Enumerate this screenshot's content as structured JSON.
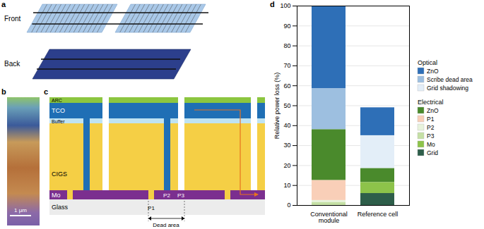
{
  "panels": {
    "a": {
      "panel": "a",
      "texts": [
        "Front",
        "Back"
      ]
    },
    "b": {
      "panel": "b",
      "scale_bar": "1 μm"
    },
    "c": {
      "panel": "c",
      "layers": [
        "ARC",
        "TCO",
        "Buffer",
        "CIGS",
        "Mo",
        "Glass"
      ],
      "scribes": [
        "P1",
        "P2",
        "P3"
      ],
      "dead_area": "Dead area"
    }
  },
  "chart_data": {
    "panel": "d",
    "type": "bar",
    "stacked": true,
    "categories": [
      "Conventional module",
      "Reference cell"
    ],
    "ylabel": "Relative power loss (%)",
    "ylim": [
      0,
      100
    ],
    "yticks": [
      0,
      10,
      20,
      30,
      40,
      50,
      60,
      70,
      80,
      90,
      100
    ],
    "grid": true,
    "legend": "right",
    "series": [
      {
        "name": "ZnO",
        "group": "Optical",
        "color": "#2e6fb7",
        "values": [
          41.5,
          14
        ]
      },
      {
        "name": "Scribe dead area",
        "group": "Optical",
        "color": "#9dbfe0",
        "values": [
          20.5,
          0
        ]
      },
      {
        "name": "Grid shadowing",
        "group": "Optical",
        "color": "#e3eef8",
        "values": [
          0,
          16.5
        ]
      },
      {
        "name": "ZnO",
        "group": "Electrical",
        "color": "#4a8a2c",
        "values": [
          25.5,
          7
        ]
      },
      {
        "name": "P1",
        "group": "Electrical",
        "color": "#f9cfb8",
        "values": [
          10,
          0
        ]
      },
      {
        "name": "P2",
        "group": "Electrical",
        "color": "#e8f3dc",
        "values": [
          1,
          0
        ]
      },
      {
        "name": "P3",
        "group": "Electrical",
        "color": "#c5e0a5",
        "values": [
          1.5,
          0
        ]
      },
      {
        "name": "Mo",
        "group": "Electrical",
        "color": "#8dc34a",
        "values": [
          0,
          5.5
        ]
      },
      {
        "name": "Grid",
        "group": "Electrical",
        "color": "#2e5e4a",
        "values": [
          0,
          6
        ]
      }
    ]
  }
}
